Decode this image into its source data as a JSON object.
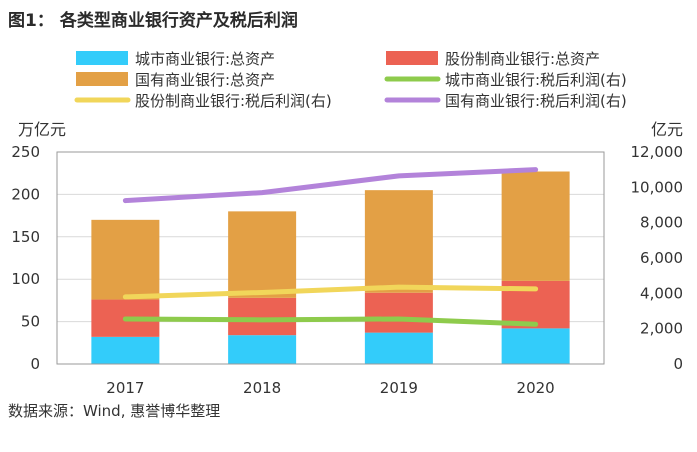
{
  "figure": {
    "label": "图1：",
    "title": "各类型商业银行资产及税后利润",
    "source": "数据来源：Wind, 惠誉博华整理"
  },
  "colors": {
    "city_assets": "#33ccfa",
    "joint_assets": "#ec6253",
    "state_assets": "#e3a045",
    "city_profit": "#8ecb4c",
    "joint_profit": "#f1d65a",
    "state_profit": "#b383da",
    "grid": "#d9d9d9",
    "frame": "#9a9a9a"
  },
  "chart_data": {
    "type": "bar",
    "categories": [
      "2017",
      "2018",
      "2019",
      "2020"
    ],
    "y_left": {
      "unit": "万亿元",
      "ylim": [
        0,
        250
      ],
      "ticks": [
        "0",
        "50",
        "100",
        "150",
        "200",
        "250"
      ]
    },
    "y_right": {
      "unit": "亿元",
      "ylim": [
        0,
        12000
      ],
      "ticks": [
        "0",
        "2,000",
        "4,000",
        "6,000",
        "8,000",
        "10,000",
        "12,000"
      ]
    },
    "grid": true,
    "stacked": true,
    "bar_series": [
      {
        "name": "城市商业银行:总资产",
        "color_key": "city_assets",
        "values": [
          32,
          34,
          37,
          42
        ]
      },
      {
        "name": "股份制商业银行:总资产",
        "color_key": "joint_assets",
        "values": [
          44,
          44,
          47,
          56
        ]
      },
      {
        "name": "国有商业银行:总资产",
        "color_key": "state_assets",
        "values": [
          94,
          102,
          121,
          129
        ]
      }
    ],
    "line_series": [
      {
        "name": "城市商业银行:税后利润(右)",
        "color_key": "city_profit",
        "values": [
          2550,
          2500,
          2550,
          2250
        ]
      },
      {
        "name": "股份制商业银行:税后利润(右)",
        "color_key": "joint_profit",
        "values": [
          3800,
          4050,
          4350,
          4250
        ]
      },
      {
        "name": "国有商业银行:税后利润(右)",
        "color_key": "state_profit",
        "values": [
          9250,
          9700,
          10650,
          11000
        ]
      }
    ]
  }
}
